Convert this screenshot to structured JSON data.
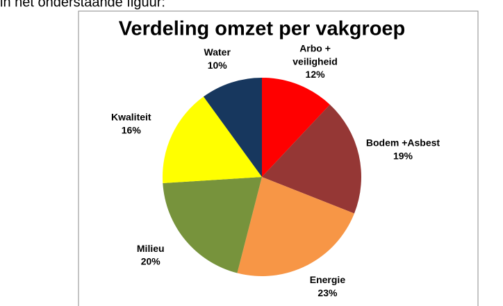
{
  "text_above": "in het onderstaande figuur:",
  "chart_data": {
    "type": "pie",
    "title": "Verdeling omzet per vakgroep",
    "categories": [
      "Arbo +\nveiligheid",
      "Bodem +Asbest",
      "Energie",
      "Milieu",
      "Kwaliteit",
      "Water"
    ],
    "values": [
      12,
      19,
      23,
      20,
      16,
      10
    ],
    "value_labels": [
      "12%",
      "19%",
      "23%",
      "20%",
      "16%",
      "10%"
    ],
    "colors": [
      "#ff0000",
      "#953735",
      "#f79646",
      "#77933c",
      "#ffff00",
      "#17375e"
    ]
  }
}
